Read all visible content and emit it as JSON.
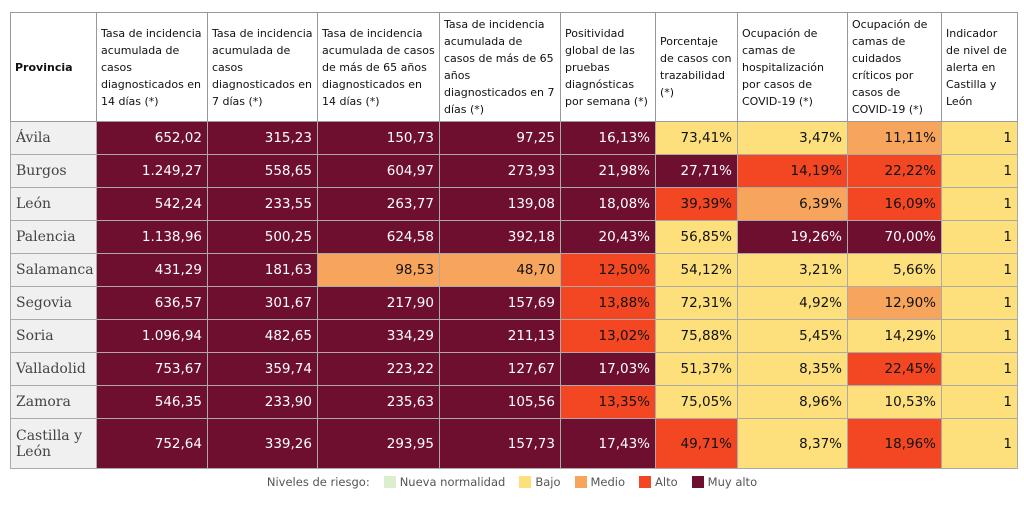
{
  "table": {
    "header": [
      "Provincia",
      "Tasa de incidencia acumulada de casos diagnosticados en 14 días (*)",
      "Tasa de incidencia acumulada de casos diagnosticados en 7 días (*)",
      "Tasa de incidencia acumulada de casos de más de 65 años diagnosticados en 14 días (*)",
      "Tasa de incidencia acumulada de casos de más de 65 años diagnosticados en 7 días (*)",
      "Positividad global de las pruebas diagnósticas por semana (*)",
      "Porcentaje de casos con trazabilidad (*)",
      "Ocupación de camas de hospitalización por casos de COVID-19 (*)",
      "Ocupación de camas de cuidados críticos por casos de COVID-19 (*)",
      "Indicador de nivel de alerta en Castilla y León"
    ],
    "rows": [
      {
        "province": "Ávila",
        "values": [
          "652,02",
          "315,23",
          "150,73",
          "97,25",
          "16,13%",
          "73,41%",
          "3,47%",
          "11,11%",
          "1"
        ],
        "colors": [
          "#6e0f2f",
          "#6e0f2f",
          "#6e0f2f",
          "#6e0f2f",
          "#6e0f2f",
          "#fde07c",
          "#fde07c",
          "#f7a55c",
          "#fde07c"
        ]
      },
      {
        "province": "Burgos",
        "values": [
          "1.249,27",
          "558,65",
          "604,97",
          "273,93",
          "21,98%",
          "27,71%",
          "14,19%",
          "22,22%",
          "1"
        ],
        "colors": [
          "#6e0f2f",
          "#6e0f2f",
          "#6e0f2f",
          "#6e0f2f",
          "#6e0f2f",
          "#6e0f2f",
          "#f24722",
          "#f24722",
          "#fde07c"
        ]
      },
      {
        "province": "León",
        "values": [
          "542,24",
          "233,55",
          "263,77",
          "139,08",
          "18,08%",
          "39,39%",
          "6,39%",
          "16,09%",
          "1"
        ],
        "colors": [
          "#6e0f2f",
          "#6e0f2f",
          "#6e0f2f",
          "#6e0f2f",
          "#6e0f2f",
          "#f24722",
          "#f7a55c",
          "#f24722",
          "#fde07c"
        ]
      },
      {
        "province": "Palencia",
        "values": [
          "1.138,96",
          "500,25",
          "624,58",
          "392,18",
          "20,43%",
          "56,85%",
          "19,26%",
          "70,00%",
          "1"
        ],
        "colors": [
          "#6e0f2f",
          "#6e0f2f",
          "#6e0f2f",
          "#6e0f2f",
          "#6e0f2f",
          "#fde07c",
          "#6e0f2f",
          "#6e0f2f",
          "#fde07c"
        ]
      },
      {
        "province": "Salamanca",
        "values": [
          "431,29",
          "181,63",
          "98,53",
          "48,70",
          "12,50%",
          "54,12%",
          "3,21%",
          "5,66%",
          "1"
        ],
        "colors": [
          "#6e0f2f",
          "#6e0f2f",
          "#f7a55c",
          "#f7a55c",
          "#f24722",
          "#fde07c",
          "#fde07c",
          "#fde07c",
          "#fde07c"
        ]
      },
      {
        "province": "Segovia",
        "values": [
          "636,57",
          "301,67",
          "217,90",
          "157,69",
          "13,88%",
          "72,31%",
          "4,92%",
          "12,90%",
          "1"
        ],
        "colors": [
          "#6e0f2f",
          "#6e0f2f",
          "#6e0f2f",
          "#6e0f2f",
          "#f24722",
          "#fde07c",
          "#fde07c",
          "#f7a55c",
          "#fde07c"
        ]
      },
      {
        "province": "Soria",
        "values": [
          "1.096,94",
          "482,65",
          "334,29",
          "211,13",
          "13,02%",
          "75,88%",
          "5,45%",
          "14,29%",
          "1"
        ],
        "colors": [
          "#6e0f2f",
          "#6e0f2f",
          "#6e0f2f",
          "#6e0f2f",
          "#f24722",
          "#fde07c",
          "#fde07c",
          "#fde07c",
          "#fde07c"
        ]
      },
      {
        "province": "Valladolid",
        "values": [
          "753,67",
          "359,74",
          "223,22",
          "127,67",
          "17,03%",
          "51,37%",
          "8,35%",
          "22,45%",
          "1"
        ],
        "colors": [
          "#6e0f2f",
          "#6e0f2f",
          "#6e0f2f",
          "#6e0f2f",
          "#6e0f2f",
          "#fde07c",
          "#fde07c",
          "#f24722",
          "#fde07c"
        ]
      },
      {
        "province": "Zamora",
        "values": [
          "546,35",
          "233,90",
          "235,63",
          "105,56",
          "13,35%",
          "75,05%",
          "8,96%",
          "10,53%",
          "1"
        ],
        "colors": [
          "#6e0f2f",
          "#6e0f2f",
          "#6e0f2f",
          "#6e0f2f",
          "#f24722",
          "#fde07c",
          "#fde07c",
          "#fde07c",
          "#fde07c"
        ]
      },
      {
        "province": "Castilla y León",
        "values": [
          "752,64",
          "339,26",
          "293,95",
          "157,73",
          "17,43%",
          "49,71%",
          "8,37%",
          "18,96%",
          "1"
        ],
        "colors": [
          "#6e0f2f",
          "#6e0f2f",
          "#6e0f2f",
          "#6e0f2f",
          "#6e0f2f",
          "#f24722",
          "#fde07c",
          "#f24722",
          "#fde07c"
        ]
      }
    ]
  },
  "legend": {
    "title": "Niveles de riesgo:",
    "items": [
      {
        "name": "Nueva normalidad",
        "color": "#dbefcf"
      },
      {
        "name": "Bajo",
        "color": "#fde07c"
      },
      {
        "name": "Medio",
        "color": "#f7a55c"
      },
      {
        "name": "Alto",
        "color": "#f24722"
      },
      {
        "name": "Muy alto",
        "color": "#6e0f2f"
      }
    ]
  }
}
